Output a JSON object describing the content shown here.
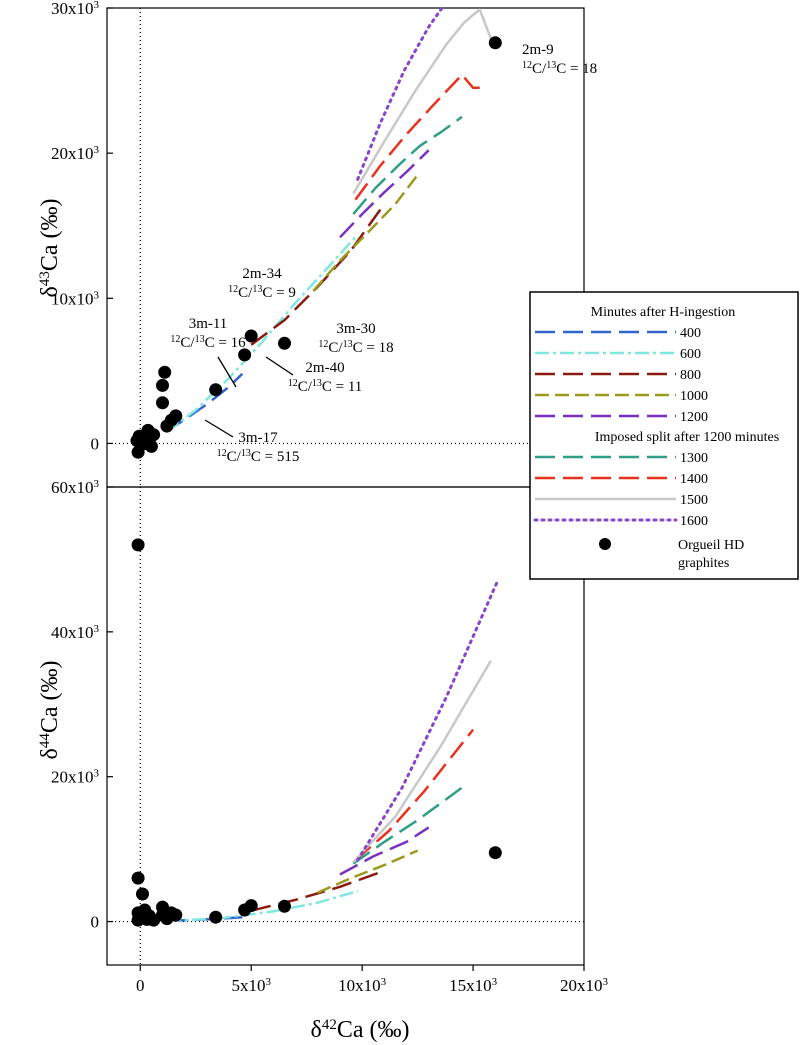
{
  "chart_data": [
    {
      "type": "line",
      "panel": "top",
      "ylabel": "δ43Ca (‰)",
      "xlabel": "",
      "xlim": [
        -1500,
        20000
      ],
      "ylim": [
        -3000,
        30000
      ],
      "yticks": [
        {
          "value": 0,
          "label": "0"
        },
        {
          "value": 10000,
          "label": "10x10",
          "sup": "3"
        },
        {
          "value": 20000,
          "label": "20x10",
          "sup": "3"
        },
        {
          "value": 30000,
          "label": "30x10",
          "sup": "3"
        }
      ],
      "series": [
        {
          "name": "400",
          "color": "#3366cc",
          "dash": "20,8",
          "width": 2.5,
          "x": [
            0,
            1000,
            2000,
            3000,
            4000,
            4600
          ],
          "y": [
            0,
            650,
            1650,
            2700,
            3900,
            4800
          ]
        },
        {
          "name": "600",
          "color": "#7fe8de",
          "dash": "14,4,3,4",
          "width": 2.5,
          "x": [
            1200,
            2500,
            4000,
            5500,
            7000,
            8500,
            9800
          ],
          "y": [
            800,
            2300,
            4500,
            7000,
            9700,
            12200,
            14400
          ]
        },
        {
          "name": "800",
          "color": "#8b1a10",
          "dash": "20,8",
          "width": 2.5,
          "x": [
            5000,
            6500,
            8000,
            9500,
            11000
          ],
          "y": [
            6800,
            8500,
            10800,
            13300,
            16500
          ]
        },
        {
          "name": "1000",
          "color": "#9a9a1e",
          "dash": "14,6",
          "width": 2.5,
          "x": [
            7800,
            9000,
            10300,
            11500,
            12500
          ],
          "y": [
            10500,
            12600,
            14600,
            16500,
            18500
          ]
        },
        {
          "name": "1200",
          "color": "#7b2fbe",
          "dash": "20,8",
          "width": 2.5,
          "x": [
            9000,
            10000,
            11000,
            12000,
            13000
          ],
          "y": [
            14200,
            15800,
            17300,
            18700,
            20200
          ]
        },
        {
          "name": "1300",
          "color": "#2e9e85",
          "dash": "20,8",
          "width": 2.5,
          "x": [
            9600,
            10600,
            11600,
            12600,
            13600,
            14500
          ],
          "y": [
            15800,
            17600,
            19100,
            20500,
            21500,
            22500
          ]
        },
        {
          "name": "1400",
          "color": "#e8321e",
          "dash": "20,8",
          "width": 2.5,
          "x": [
            9700,
            10800,
            12000,
            13200,
            14500,
            15000,
            15400
          ],
          "y": [
            16800,
            19100,
            21300,
            23300,
            25400,
            24500,
            24500
          ]
        },
        {
          "name": "1500",
          "color": "#c8c8c8",
          "dash": "",
          "width": 2.5,
          "x": [
            9600,
            11000,
            12400,
            13800,
            14600,
            15300,
            15900,
            16100
          ],
          "y": [
            17200,
            20800,
            24300,
            27500,
            29000,
            29900,
            27500,
            27500
          ]
        },
        {
          "name": "1600",
          "color": "#8844cc",
          "dash": "2,5",
          "width": 3,
          "x": [
            9800,
            10800,
            11900,
            13000,
            13600
          ],
          "y": [
            18200,
            22000,
            25700,
            28700,
            30000
          ]
        }
      ],
      "scatter": {
        "name": "Orgueil HD graphites",
        "points": [
          [
            -100,
            -600
          ],
          [
            -150,
            200
          ],
          [
            0,
            300
          ],
          [
            100,
            -50
          ],
          [
            200,
            450
          ],
          [
            300,
            700
          ],
          [
            350,
            900
          ],
          [
            400,
            200
          ],
          [
            500,
            -200
          ],
          [
            600,
            600
          ],
          [
            200,
            0
          ],
          [
            -50,
            500
          ],
          [
            1000,
            4000
          ],
          [
            1000,
            2800
          ],
          [
            1100,
            4900
          ],
          [
            1200,
            1200
          ],
          [
            1400,
            1600
          ],
          [
            1600,
            1900
          ],
          [
            3400,
            3700
          ],
          [
            4700,
            6100
          ],
          [
            5000,
            7400
          ],
          [
            6500,
            6900
          ],
          [
            16000,
            27600
          ]
        ]
      },
      "annotations": [
        {
          "lines": [
            "2m-9",
            "12C/13C = 18"
          ]
        },
        {
          "lines": [
            "2m-34",
            "12C/13C = 9"
          ]
        },
        {
          "lines": [
            "3m-11",
            "12C/13C = 16"
          ]
        },
        {
          "lines": [
            "3m-30",
            "12C/13C = 18"
          ]
        },
        {
          "lines": [
            "2m-40",
            "12C/13C = 11"
          ]
        },
        {
          "lines": [
            "3m-17",
            "12C/13C = 515"
          ]
        }
      ]
    },
    {
      "type": "line",
      "panel": "bottom",
      "ylabel": "δ44Ca (‰)",
      "xlabel": "δ42Ca (‰)",
      "xlim": [
        -1500,
        20000
      ],
      "ylim": [
        -6000,
        60000
      ],
      "yticks": [
        {
          "value": 0,
          "label": "0"
        },
        {
          "value": 20000,
          "label": "20x10",
          "sup": "3"
        },
        {
          "value": 40000,
          "label": "40x10",
          "sup": "3"
        },
        {
          "value": 60000,
          "label": "60x10",
          "sup": "3"
        }
      ],
      "xticks": [
        {
          "value": 0,
          "label": "0"
        },
        {
          "value": 5000,
          "label": "5x10",
          "sup": "3"
        },
        {
          "value": 10000,
          "label": "10x10",
          "sup": "3"
        },
        {
          "value": 15000,
          "label": "15x10",
          "sup": "3"
        },
        {
          "value": 20000,
          "label": "20x10",
          "sup": "3"
        }
      ],
      "series": [
        {
          "name": "400",
          "color": "#3366cc",
          "dash": "20,8",
          "width": 2.5,
          "x": [
            0,
            1500,
            3000,
            4600
          ],
          "y": [
            0,
            100,
            300,
            600
          ]
        },
        {
          "name": "600",
          "color": "#7fe8de",
          "dash": "14,4,3,4",
          "width": 2.5,
          "x": [
            1200,
            3500,
            6000,
            8000,
            9800
          ],
          "y": [
            100,
            400,
            1400,
            2600,
            4200
          ]
        },
        {
          "name": "800",
          "color": "#8b1a10",
          "dash": "20,8",
          "width": 2.5,
          "x": [
            5000,
            7000,
            9000,
            11000
          ],
          "y": [
            1500,
            3000,
            4800,
            7000
          ]
        },
        {
          "name": "1000",
          "color": "#9a9a1e",
          "dash": "14,6",
          "width": 2.5,
          "x": [
            8000,
            9500,
            11000,
            12500
          ],
          "y": [
            4000,
            6000,
            7800,
            9800
          ]
        },
        {
          "name": "1200",
          "color": "#7b2fbe",
          "dash": "20,8",
          "width": 2.5,
          "x": [
            9000,
            10500,
            12000,
            13000
          ],
          "y": [
            6500,
            9000,
            11000,
            13000
          ]
        },
        {
          "name": "1300",
          "color": "#2e9e85",
          "dash": "20,8",
          "width": 2.5,
          "x": [
            9600,
            11000,
            12500,
            14500
          ],
          "y": [
            8000,
            11000,
            14000,
            18500
          ]
        },
        {
          "name": "1400",
          "color": "#e8321e",
          "dash": "20,8",
          "width": 2.5,
          "x": [
            9700,
            11200,
            12800,
            15000
          ],
          "y": [
            8500,
            12500,
            18000,
            26500
          ]
        },
        {
          "name": "1500",
          "color": "#c8c8c8",
          "dash": "",
          "width": 2.5,
          "x": [
            9600,
            11500,
            13500,
            15800
          ],
          "y": [
            8200,
            14500,
            24000,
            36000
          ]
        },
        {
          "name": "1600",
          "color": "#8844cc",
          "dash": "2,5",
          "width": 3,
          "x": [
            9800,
            11800,
            13800,
            16100
          ],
          "y": [
            8500,
            18500,
            31000,
            47000
          ]
        }
      ],
      "scatter": {
        "name": "Orgueil HD graphites",
        "points": [
          [
            -100,
            52000
          ],
          [
            -100,
            6000
          ],
          [
            100,
            3800
          ],
          [
            -100,
            1200
          ],
          [
            0,
            1000
          ],
          [
            100,
            500
          ],
          [
            200,
            1600
          ],
          [
            300,
            300
          ],
          [
            400,
            800
          ],
          [
            600,
            200
          ],
          [
            -100,
            200
          ],
          [
            1000,
            2000
          ],
          [
            1000,
            900
          ],
          [
            1200,
            400
          ],
          [
            1400,
            1200
          ],
          [
            1600,
            900
          ],
          [
            3400,
            600
          ],
          [
            4700,
            1600
          ],
          [
            5000,
            2200
          ],
          [
            6500,
            2100
          ],
          [
            16000,
            9500
          ]
        ]
      },
      "annotations": []
    }
  ],
  "legend": {
    "title": "Minutes after H-ingestion",
    "subtitle": "Imposed split after 1200 minutes",
    "items_group1": [
      {
        "label": "400",
        "color": "#3366cc",
        "dash": "20,8",
        "width": 2.5
      },
      {
        "label": "600",
        "color": "#7fe8de",
        "dash": "14,4,3,4",
        "width": 2.5
      },
      {
        "label": "800",
        "color": "#8b1a10",
        "dash": "20,8",
        "width": 2.5
      },
      {
        "label": "1000",
        "color": "#9a9a1e",
        "dash": "14,6",
        "width": 2.5
      },
      {
        "label": "1200",
        "color": "#7b2fbe",
        "dash": "20,8",
        "width": 2.5
      }
    ],
    "items_group2": [
      {
        "label": "1300",
        "color": "#2e9e85",
        "dash": "20,8",
        "width": 2.5
      },
      {
        "label": "1400",
        "color": "#e8321e",
        "dash": "20,8",
        "width": 2.5
      },
      {
        "label": "1500",
        "color": "#c8c8c8",
        "dash": "",
        "width": 2.5
      },
      {
        "label": "1600",
        "color": "#8844cc",
        "dash": "2,5",
        "width": 3
      }
    ],
    "marker_label_lines": [
      "Orgueil HD",
      "graphites"
    ]
  }
}
